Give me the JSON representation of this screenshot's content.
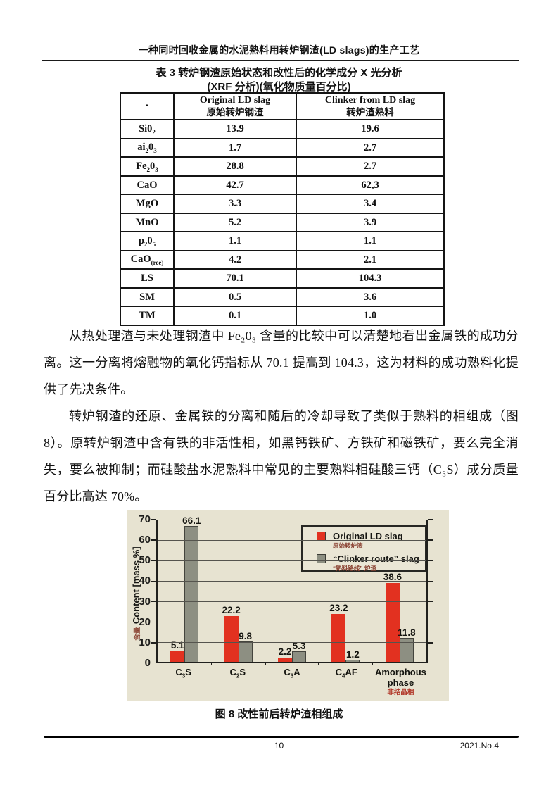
{
  "header": {
    "title": "一种同时回收金属的水泥熟料用转炉钢渣(LD slags)的生产工艺"
  },
  "table": {
    "caption_line1": "表 3 转炉钢渣原始状态和改性后的化学成分 X 光分析",
    "caption_line2": "(XRF 分析)(氧化物质量百分比)",
    "columns": [
      {
        "en": "·",
        "zh": ""
      },
      {
        "en": "Original LD slag",
        "zh": "原始转炉钢渣"
      },
      {
        "en": "Clinker from LD slag",
        "zh": "转炉渣熟料"
      }
    ],
    "rows": [
      {
        "label": [
          "Si0",
          "2"
        ],
        "values": [
          "13.9",
          "19.6"
        ]
      },
      {
        "label": [
          "ai",
          "2",
          "0",
          "3"
        ],
        "values": [
          "1.7",
          "2.7"
        ]
      },
      {
        "label": [
          "Fe",
          "2",
          "0",
          "3"
        ],
        "values": [
          "28.8",
          "2.7"
        ]
      },
      {
        "label": [
          "CaO"
        ],
        "values": [
          "42.7",
          "62,3"
        ]
      },
      {
        "label": [
          "MgO"
        ],
        "values": [
          "3.3",
          "3.4"
        ]
      },
      {
        "label": [
          "MnO"
        ],
        "values": [
          "5.2",
          "3.9"
        ]
      },
      {
        "label": [
          "p",
          "2",
          "0",
          "5"
        ],
        "values": [
          "1.1",
          "1.1"
        ]
      },
      {
        "label": [
          "CaO",
          "(ree)"
        ],
        "values": [
          "4.2",
          "2.1"
        ]
      },
      {
        "label": [
          "LS"
        ],
        "values": [
          "70.1",
          "104.3"
        ]
      },
      {
        "label": [
          "SM"
        ],
        "values": [
          "0.5",
          "3.6"
        ]
      },
      {
        "label": [
          "TM"
        ],
        "values": [
          "0.1",
          "1.0"
        ]
      }
    ]
  },
  "paragraphs": [
    "从热处理渣与未处理钢渣中 Fe₂0₃ 含量的比较中可以清楚地看出金属铁的成功分离。这一分离将熔融物的氧化钙指标从 70.1 提高到 104.3，这为材料的成功熟料化提供了先决条件。",
    "转炉钢渣的还原、金属铁的分离和随后的冷却导致了类似于熟料的相组成（图8）。原转炉钢渣中含有铁的非活性相，如黑钙铁矿、方铁矿和磁铁矿，要么完全消失，要么被抑制；而硅酸盐水泥熟料中常见的主要熟料相硅酸三钙（C₃S）成分质量百分比高达 70%。"
  ],
  "chart_data": {
    "type": "bar",
    "categories": [
      [
        "C",
        "3",
        "S"
      ],
      [
        "C",
        "2",
        "S"
      ],
      [
        "C",
        "3",
        "A"
      ],
      [
        "C",
        "4",
        "AF"
      ],
      [
        "Amorphous phase"
      ]
    ],
    "categories_zh": [
      "",
      "",
      "",
      "",
      "非结晶相"
    ],
    "series": [
      {
        "name": "Original LD slag",
        "name_zh": "原始转炉渣",
        "color": "#e23120",
        "values": [
          5.1,
          22.2,
          2.2,
          23.2,
          38.6
        ]
      },
      {
        "name": "“Clinker route” slag",
        "name_zh": "“熟料路线” 炉渣",
        "color": "#8d8f82",
        "values": [
          66.1,
          9.8,
          5.3,
          1.2,
          11.8
        ]
      }
    ],
    "ylabel_zh": "含量",
    "ylabel_en": "Content [mass %]",
    "yticks": [
      0,
      10,
      20,
      30,
      40,
      50,
      60,
      70
    ],
    "ylim": [
      0,
      70
    ],
    "grid": true,
    "legend_position": "top-right",
    "colors": {
      "background": "#e7e3d1",
      "bar_red": "#e23120",
      "bar_gray": "#8d8f82",
      "annotation_red": "#b03425"
    }
  },
  "figure": {
    "caption": "图 8 改性前后转炉渣相组成"
  },
  "footer": {
    "page_number": "10",
    "issue": "2021.No.4"
  }
}
